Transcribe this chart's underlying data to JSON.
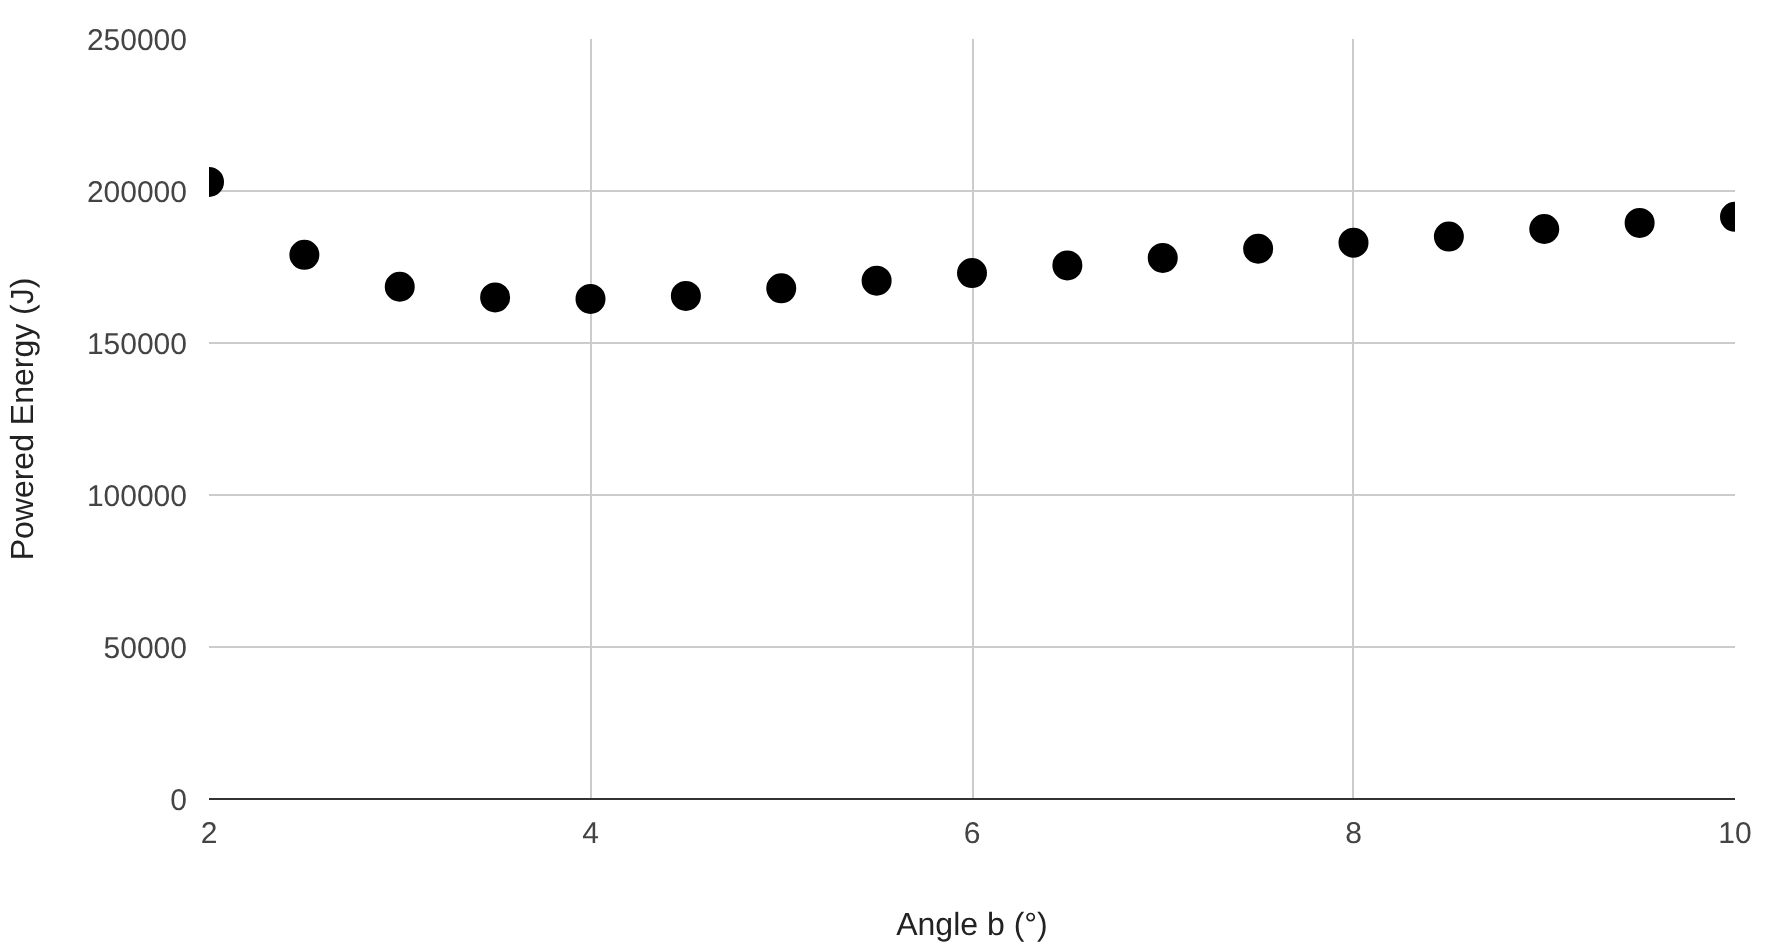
{
  "chart_data": {
    "type": "scatter",
    "xlabel": "Angle b (°)",
    "ylabel": "Powered Energy (J)",
    "x": [
      2,
      2.5,
      3,
      3.5,
      4,
      4.5,
      5,
      5.5,
      6,
      6.5,
      7,
      7.5,
      8,
      8.5,
      9,
      9.5,
      10
    ],
    "series": [
      {
        "color": "#000000",
        "values": [
          203000,
          179000,
          168500,
          165000,
          164500,
          165500,
          168000,
          170500,
          173000,
          175500,
          178000,
          181000,
          183000,
          185000,
          187500,
          189500,
          191500
        ]
      }
    ],
    "xlim": [
      2,
      10
    ],
    "xticks": [
      2,
      4,
      6,
      8,
      10
    ],
    "ylim": [
      0,
      250000
    ],
    "yticks": [
      0,
      50000,
      100000,
      150000,
      200000,
      250000
    ],
    "grid": true,
    "marker": "circle"
  }
}
